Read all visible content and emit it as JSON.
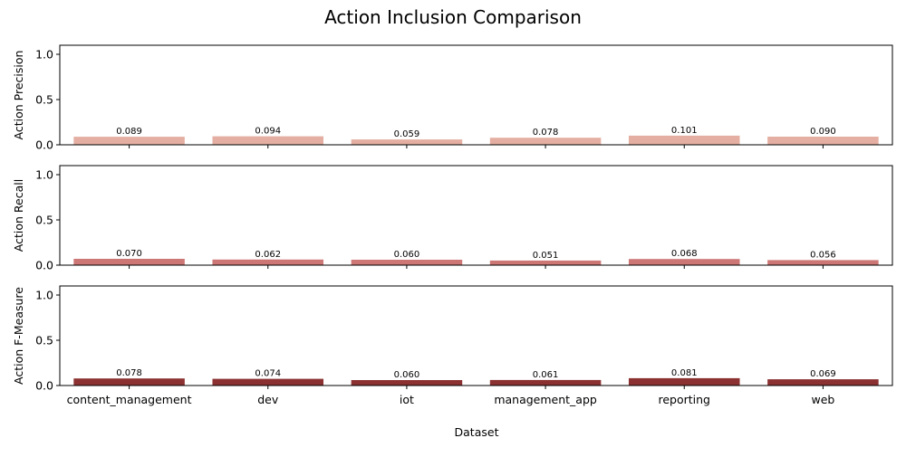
{
  "chart_data": {
    "type": "bar",
    "title": "Action Inclusion Comparison",
    "xlabel": "Dataset",
    "categories": [
      "content_management",
      "dev",
      "iot",
      "management_app",
      "reporting",
      "web"
    ],
    "ylim": [
      0,
      1.1
    ],
    "yticks": [
      0.0,
      0.5,
      1.0
    ],
    "ytick_labels": [
      "0.0",
      "0.5",
      "1.0"
    ],
    "grid": false,
    "legend": "none",
    "panels": [
      {
        "ylabel": "Action Precision",
        "color": "#e4afa2",
        "values": [
          0.089,
          0.094,
          0.059,
          0.078,
          0.101,
          0.09
        ],
        "value_labels": [
          "0.089",
          "0.094",
          "0.059",
          "0.078",
          "0.101",
          "0.090"
        ]
      },
      {
        "ylabel": "Action Recall",
        "color": "#cc7775",
        "values": [
          0.07,
          0.062,
          0.06,
          0.051,
          0.068,
          0.056
        ],
        "value_labels": [
          "0.070",
          "0.062",
          "0.060",
          "0.051",
          "0.068",
          "0.056"
        ]
      },
      {
        "ylabel": "Action F-Measure",
        "color": "#8b3131",
        "values": [
          0.078,
          0.074,
          0.06,
          0.061,
          0.081,
          0.069
        ],
        "value_labels": [
          "0.078",
          "0.074",
          "0.060",
          "0.061",
          "0.081",
          "0.069"
        ]
      }
    ]
  }
}
